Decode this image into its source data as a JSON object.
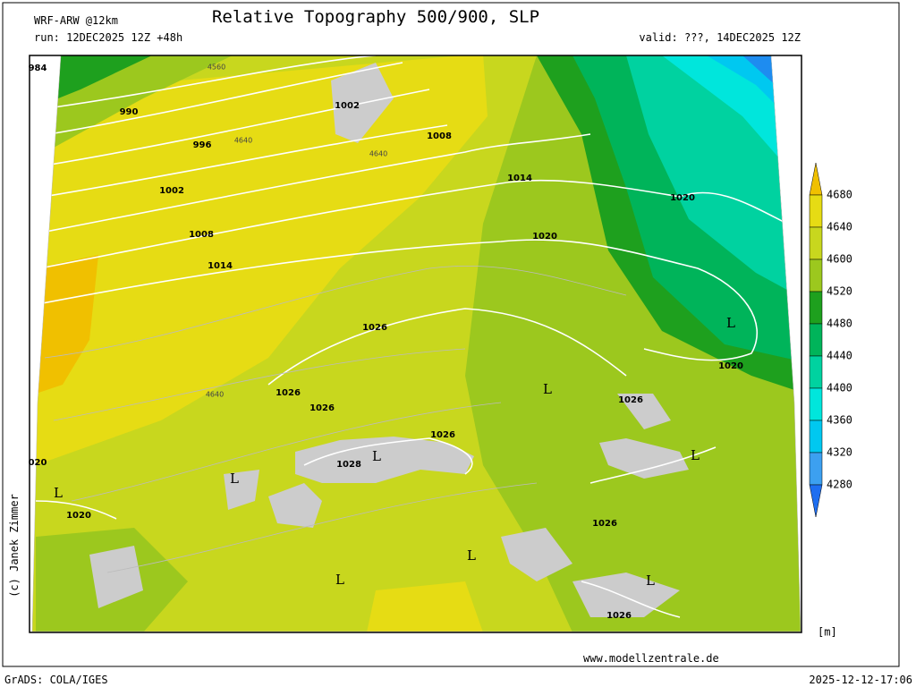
{
  "header": {
    "model": "WRF-ARW @12km",
    "run": "run: 12DEC2025 12Z +48h",
    "title": "Relative Topography 500/900, SLP",
    "valid": "valid: ???, 14DEC2025 12Z"
  },
  "legend": {
    "levels": [
      4680,
      4640,
      4600,
      4520,
      4480,
      4440,
      4400,
      4360,
      4320,
      4280
    ],
    "unit": "[m]"
  },
  "map": {
    "labels": [
      "984",
      "990",
      "996",
      "1002",
      "1008",
      "1014",
      "1002",
      "1008",
      "1014",
      "1020",
      "1020",
      "L",
      "1020",
      "1026",
      "1026",
      "1026",
      "1026",
      "1028",
      "L",
      "L",
      "1026",
      "L",
      "1026",
      "L",
      "L",
      "L",
      "1026",
      "L",
      "L",
      "020",
      "1020",
      "4560",
      "4640",
      "4640",
      "4640"
    ]
  },
  "footer": {
    "copyright": "(c) Janek Zimmer",
    "url": "www.modellzentrale.de",
    "software": "GrADS: COLA/IGES",
    "timestamp": "2025-12-12-17:06"
  }
}
